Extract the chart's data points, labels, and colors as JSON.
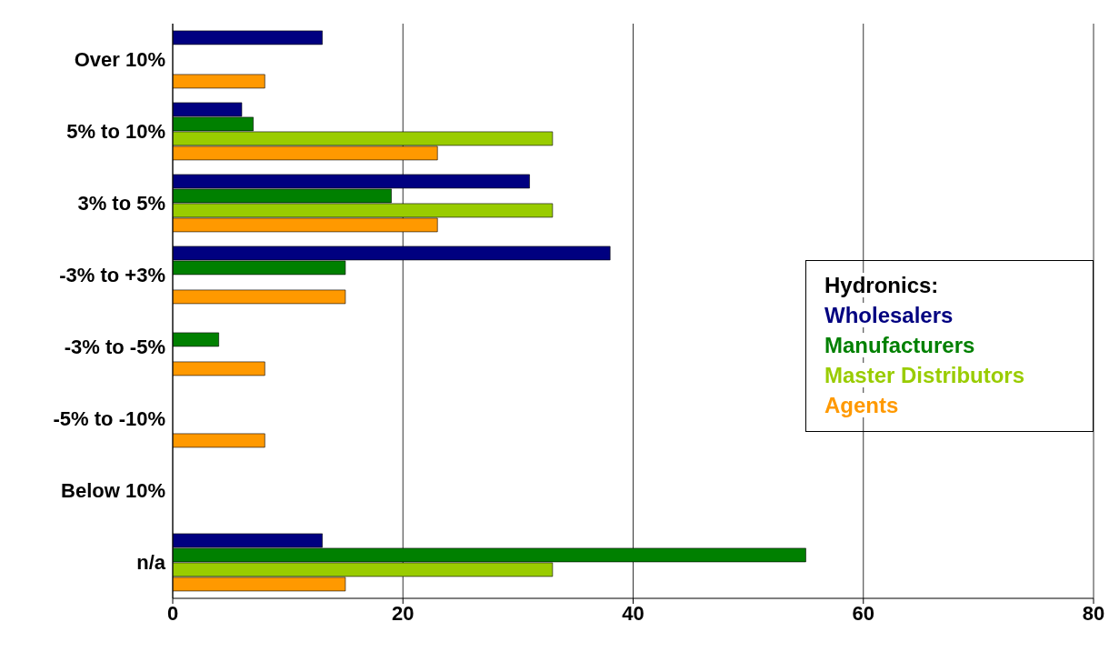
{
  "chart_data": {
    "type": "bar",
    "orientation": "horizontal",
    "categories": [
      "Over 10%",
      "5% to 10%",
      "3% to 5%",
      "-3% to +3%",
      "-3% to -5%",
      "-5% to -10%",
      "Below 10%",
      "n/a"
    ],
    "series": [
      {
        "name": "Wholesalers",
        "color": "#000080",
        "values": [
          13,
          6,
          31,
          38,
          0,
          0,
          0,
          13
        ]
      },
      {
        "name": "Manufacturers",
        "color": "#008000",
        "values": [
          0,
          7,
          19,
          15,
          4,
          0,
          0,
          55
        ]
      },
      {
        "name": "Master Distributors",
        "color": "#99cc00",
        "values": [
          0,
          33,
          33,
          0,
          0,
          0,
          0,
          33
        ]
      },
      {
        "name": "Agents",
        "color": "#ff9900",
        "values": [
          8,
          23,
          23,
          15,
          8,
          8,
          0,
          15
        ]
      }
    ],
    "legend_title": "Hydronics:",
    "legend": "right",
    "xlim": [
      0,
      80
    ],
    "xticks": [
      0,
      20,
      40,
      60,
      80
    ],
    "grid": "x"
  }
}
